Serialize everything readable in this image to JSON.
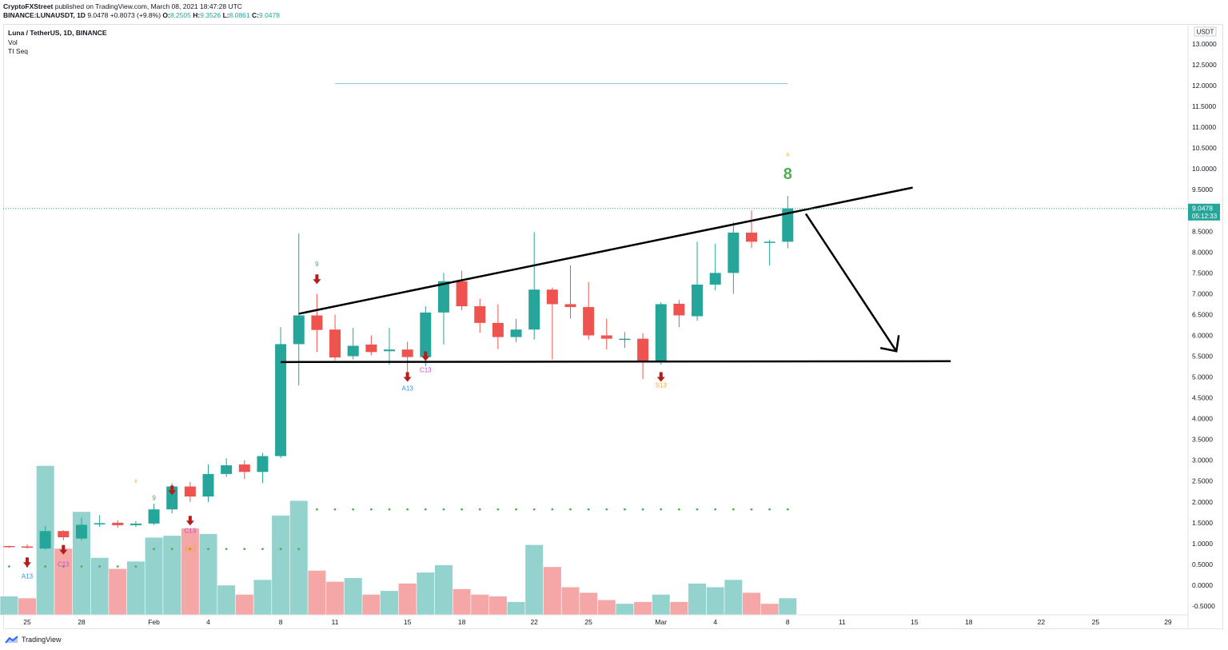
{
  "header": {
    "publisher": "CryptoFXStreet",
    "published_text": "published on TradingView.com, March 08, 2021 18:47:28 UTC"
  },
  "ohlc": {
    "symbol": "BINANCE:LUNAUSDT, 1D",
    "last": "9.0478",
    "change": "+0.8073 (+9.8%)",
    "o_label": "O:",
    "o": "8.2505",
    "h_label": "H:",
    "h": "9.3526",
    "l_label": "L:",
    "l": "8.0861",
    "c_label": "C:",
    "c": "9.0478"
  },
  "legend": {
    "symbol": "Luna / TetherUS, 1D, BINANCE",
    "indicator1": "Vol",
    "indicator2": "TI Seq"
  },
  "price_axis": {
    "currency": "USDT",
    "last_price": "9.0478",
    "countdown": "05:12:33"
  },
  "footer": {
    "brand": "TradingView"
  },
  "colors": {
    "up": "#26a69a",
    "down": "#ef5350",
    "vol_up": "#93d2cd",
    "vol_down": "#f5a6a6",
    "resistance": "#90c8e0",
    "seq_green": "#4caf50",
    "seq_orange": "#f9a825",
    "seq_magenta": "#c84ccc",
    "seq_blue": "#2196f3",
    "arrow_dark": "#b71c1c"
  },
  "chart_data": {
    "type": "candlestick",
    "ylim": [
      -0.5,
      13.0
    ],
    "yticks": [
      "13.0000",
      "12.5000",
      "12.0000",
      "11.5000",
      "11.0000",
      "10.5000",
      "10.0000",
      "9.5000",
      "9.0000",
      "8.5000",
      "8.0000",
      "7.5000",
      "7.0000",
      "6.5000",
      "6.0000",
      "5.5000",
      "5.0000",
      "4.5000",
      "4.0000",
      "3.5000",
      "3.0000",
      "2.5000",
      "2.0000",
      "1.5000",
      "1.0000",
      "0.5000",
      "0.0000",
      "-0.5000"
    ],
    "xticks": [
      {
        "day": 0,
        "label": "25"
      },
      {
        "day": 3,
        "label": "28"
      },
      {
        "day": 7,
        "label": "Feb"
      },
      {
        "day": 10,
        "label": "4"
      },
      {
        "day": 14,
        "label": "8"
      },
      {
        "day": 17,
        "label": "11"
      },
      {
        "day": 21,
        "label": "15"
      },
      {
        "day": 24,
        "label": "18"
      },
      {
        "day": 28,
        "label": "22"
      },
      {
        "day": 31,
        "label": "25"
      },
      {
        "day": 35,
        "label": "Mar"
      },
      {
        "day": 38,
        "label": "4"
      },
      {
        "day": 42,
        "label": "8"
      },
      {
        "day": 45,
        "label": "11"
      },
      {
        "day": 49,
        "label": "15"
      },
      {
        "day": 52,
        "label": "18"
      },
      {
        "day": 56,
        "label": "22"
      },
      {
        "day": 59,
        "label": "25"
      },
      {
        "day": 63,
        "label": "29"
      }
    ],
    "candles": [
      [
        -1,
        0.94,
        0.95,
        0.9,
        0.93
      ],
      [
        0,
        0.93,
        0.98,
        0.88,
        0.9
      ],
      [
        1,
        0.88,
        1.42,
        0.85,
        1.3
      ],
      [
        2,
        1.3,
        1.32,
        1.08,
        1.15
      ],
      [
        3,
        1.12,
        1.62,
        1.08,
        1.45
      ],
      [
        4,
        1.46,
        1.68,
        1.4,
        1.49
      ],
      [
        5,
        1.5,
        1.56,
        1.38,
        1.44
      ],
      [
        6,
        1.44,
        1.54,
        1.4,
        1.48
      ],
      [
        7,
        1.48,
        1.96,
        1.44,
        1.82
      ],
      [
        8,
        1.82,
        2.45,
        1.72,
        2.37
      ],
      [
        9,
        2.37,
        2.48,
        2.0,
        2.13
      ],
      [
        10,
        2.13,
        2.9,
        2.0,
        2.67
      ],
      [
        11,
        2.67,
        3.05,
        2.6,
        2.88
      ],
      [
        12,
        2.9,
        3.0,
        2.55,
        2.72
      ],
      [
        13,
        2.72,
        3.18,
        2.45,
        3.1
      ],
      [
        14,
        3.1,
        6.2,
        3.05,
        5.79
      ],
      [
        15,
        5.79,
        8.45,
        4.8,
        6.48
      ],
      [
        16,
        6.48,
        7.0,
        5.6,
        6.13
      ],
      [
        17,
        6.14,
        6.5,
        5.4,
        5.47
      ],
      [
        18,
        5.5,
        6.18,
        5.42,
        5.75
      ],
      [
        19,
        5.78,
        6.0,
        5.52,
        5.6
      ],
      [
        20,
        5.62,
        6.18,
        5.3,
        5.66
      ],
      [
        21,
        5.66,
        5.85,
        4.98,
        5.48
      ],
      [
        22,
        5.48,
        6.7,
        5.26,
        6.55
      ],
      [
        23,
        6.55,
        7.5,
        5.78,
        7.3
      ],
      [
        24,
        7.3,
        7.55,
        6.6,
        6.7
      ],
      [
        25,
        6.7,
        6.88,
        6.06,
        6.3
      ],
      [
        26,
        6.3,
        6.75,
        5.67,
        5.96
      ],
      [
        27,
        5.96,
        6.4,
        5.84,
        6.14
      ],
      [
        28,
        6.14,
        8.48,
        5.9,
        7.1
      ],
      [
        29,
        7.1,
        7.15,
        5.42,
        6.75
      ],
      [
        30,
        6.75,
        7.68,
        6.4,
        6.68
      ],
      [
        31,
        6.68,
        7.28,
        5.9,
        6.0
      ],
      [
        32,
        6.0,
        6.4,
        5.66,
        5.92
      ],
      [
        33,
        5.9,
        6.08,
        5.7,
        5.92
      ],
      [
        34,
        5.92,
        6.05,
        4.95,
        5.37
      ],
      [
        35,
        5.37,
        6.8,
        5.3,
        6.75
      ],
      [
        36,
        6.76,
        6.85,
        6.2,
        6.48
      ],
      [
        37,
        6.46,
        8.25,
        6.35,
        7.22
      ],
      [
        38,
        7.22,
        8.2,
        7.08,
        7.5
      ],
      [
        39,
        7.5,
        8.72,
        7.0,
        8.47
      ],
      [
        40,
        8.47,
        9.0,
        8.1,
        8.25
      ],
      [
        41,
        8.25,
        8.3,
        7.68,
        8.25
      ],
      [
        42,
        8.25,
        9.35,
        8.09,
        9.05
      ]
    ],
    "volume": [
      [
        -1,
        0.1,
        "up"
      ],
      [
        0,
        0.09,
        "down"
      ],
      [
        1,
        0.81,
        "up"
      ],
      [
        2,
        0.36,
        "down"
      ],
      [
        3,
        0.56,
        "up"
      ],
      [
        4,
        0.31,
        "up"
      ],
      [
        5,
        0.25,
        "down"
      ],
      [
        6,
        0.29,
        "up"
      ],
      [
        7,
        0.42,
        "up"
      ],
      [
        8,
        0.43,
        "up"
      ],
      [
        9,
        0.47,
        "down"
      ],
      [
        10,
        0.44,
        "up"
      ],
      [
        11,
        0.16,
        "up"
      ],
      [
        12,
        0.11,
        "down"
      ],
      [
        13,
        0.19,
        "up"
      ],
      [
        14,
        0.54,
        "up"
      ],
      [
        15,
        0.62,
        "up"
      ],
      [
        16,
        0.24,
        "down"
      ],
      [
        17,
        0.18,
        "down"
      ],
      [
        18,
        0.2,
        "up"
      ],
      [
        19,
        0.11,
        "down"
      ],
      [
        20,
        0.13,
        "up"
      ],
      [
        21,
        0.17,
        "down"
      ],
      [
        22,
        0.23,
        "up"
      ],
      [
        23,
        0.27,
        "up"
      ],
      [
        24,
        0.14,
        "down"
      ],
      [
        25,
        0.11,
        "down"
      ],
      [
        26,
        0.1,
        "down"
      ],
      [
        27,
        0.07,
        "up"
      ],
      [
        28,
        0.38,
        "up"
      ],
      [
        29,
        0.26,
        "down"
      ],
      [
        30,
        0.15,
        "down"
      ],
      [
        31,
        0.12,
        "down"
      ],
      [
        32,
        0.08,
        "down"
      ],
      [
        33,
        0.06,
        "up"
      ],
      [
        34,
        0.07,
        "down"
      ],
      [
        35,
        0.11,
        "up"
      ],
      [
        36,
        0.07,
        "down"
      ],
      [
        37,
        0.17,
        "up"
      ],
      [
        38,
        0.15,
        "up"
      ],
      [
        39,
        0.19,
        "up"
      ],
      [
        40,
        0.12,
        "down"
      ],
      [
        41,
        0.06,
        "down"
      ],
      [
        42,
        0.09,
        "up"
      ]
    ],
    "drawings": {
      "resistance_line": {
        "from": [
          17,
          12.05
        ],
        "to": [
          42,
          12.05
        ]
      },
      "upper_trendline": {
        "from": [
          15,
          6.52
        ],
        "to": [
          48.9,
          9.55
        ]
      },
      "lower_trendline": {
        "from": [
          14,
          5.36
        ],
        "to": [
          51,
          5.38
        ]
      },
      "projection_arrow": {
        "from": [
          43,
          8.92
        ],
        "to": [
          48,
          5.62
        ]
      }
    },
    "sequential_labels": [
      {
        "day": 7,
        "price": 2.04,
        "text": "9",
        "color": "seq_green",
        "size": 8
      },
      {
        "day": 6,
        "price": 2.46,
        "text": "8",
        "color": "seq_orange",
        "size": 6
      },
      {
        "day": 9,
        "price": 1.26,
        "text": "C13",
        "color": "seq_magenta",
        "size": 8
      },
      {
        "day": 9,
        "price": 0.81,
        "text": "S13",
        "color": "seq_orange",
        "size": 8
      },
      {
        "day": 0,
        "price": 0.16,
        "text": "A13",
        "color": "seq_blue",
        "size": 8
      },
      {
        "day": 2,
        "price": 0.45,
        "text": "C13",
        "color": "seq_magenta",
        "size": 8
      },
      {
        "day": 16,
        "price": 7.66,
        "text": "9",
        "color": "seq_green",
        "size": 8
      },
      {
        "day": 22,
        "price": 5.12,
        "text": "C13",
        "color": "seq_magenta",
        "size": 8
      },
      {
        "day": 21,
        "price": 4.67,
        "text": "A13",
        "color": "seq_blue",
        "size": 8
      },
      {
        "day": 35,
        "price": 4.75,
        "text": "S13",
        "color": "seq_orange",
        "size": 8
      },
      {
        "day": 42,
        "price": 10.3,
        "text": "8",
        "color": "seq_orange",
        "size": 6
      },
      {
        "day": 42,
        "price": 9.75,
        "text": "8",
        "color": "seq_green",
        "size": 20
      }
    ],
    "sell_arrows": [
      {
        "day": 0,
        "price": 0.55
      },
      {
        "day": 2,
        "price": 0.85
      },
      {
        "day": 8,
        "price": 2.28
      },
      {
        "day": 9,
        "price": 1.55
      },
      {
        "day": 16,
        "price": 7.35
      },
      {
        "day": 22,
        "price": 5.5
      },
      {
        "day": 21,
        "price": 5.0
      },
      {
        "day": 35,
        "price": 5.0
      }
    ],
    "setup_dots": [
      {
        "from": 7,
        "to": 15,
        "price": 0.87
      },
      {
        "from": 16,
        "to": 42,
        "price": 1.82
      },
      {
        "from": -1,
        "to": 6,
        "price": 0.45
      }
    ]
  }
}
